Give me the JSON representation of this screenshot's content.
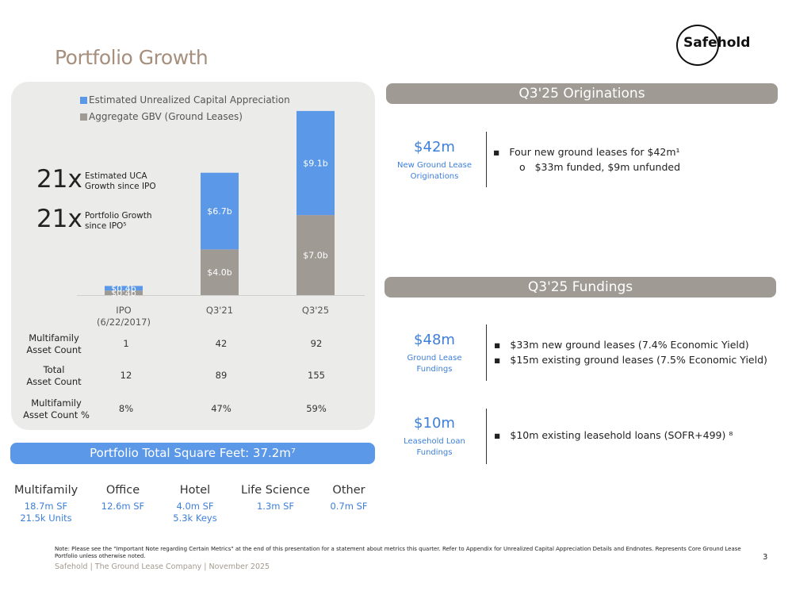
{
  "title": "Portfolio Growth",
  "logo": {
    "text": "Safehold"
  },
  "chart_data": {
    "type": "bar",
    "stacked": true,
    "categories": [
      "IPO\n(6/22/2017)",
      "Q3'21",
      "Q3'25"
    ],
    "series": [
      {
        "name": "Aggregate GBV (Ground Leases)",
        "color": "#a09a95",
        "values": [
          0.4,
          4.0,
          7.0
        ],
        "labels": [
          "$0.4b",
          "$4.0b",
          "$7.0b"
        ]
      },
      {
        "name": "Estimated Unrealized Capital Appreciation",
        "color": "#5b98e8",
        "values": [
          0.4,
          6.7,
          9.1
        ],
        "labels": [
          "$0.4b",
          "$6.7b",
          "$9.1b"
        ]
      }
    ],
    "ylim": [
      0,
      16.3
    ],
    "legend": [
      "Estimated Unrealized Capital Appreciation",
      "Aggregate GBV (Ground Leases)"
    ],
    "annotations": [
      {
        "value": "21x",
        "label_lines": [
          "Estimated UCA",
          "Growth since IPO"
        ]
      },
      {
        "value": "21x",
        "label_lines": [
          "Portfolio Growth",
          "since IPO⁵"
        ]
      }
    ]
  },
  "table": {
    "rows": [
      {
        "label_lines": [
          "Multifamily",
          "Asset Count"
        ],
        "values": [
          "1",
          "42",
          "92"
        ]
      },
      {
        "label_lines": [
          "Total",
          "Asset Count"
        ],
        "values": [
          "12",
          "89",
          "155"
        ]
      },
      {
        "label_lines": [
          "Multifamily",
          "Asset Count %"
        ],
        "values": [
          "8%",
          "47%",
          "59%"
        ]
      }
    ]
  },
  "sqft_bar": "Portfolio Total Square Feet: 37.2m⁷",
  "segments": [
    {
      "name": "Multifamily",
      "lines": [
        "18.7m SF",
        "21.5k Units"
      ]
    },
    {
      "name": "Office",
      "lines": [
        "12.6m SF"
      ]
    },
    {
      "name": "Hotel",
      "lines": [
        "4.0m SF",
        "5.3k Keys"
      ]
    },
    {
      "name": "Life Science",
      "lines": [
        "1.3m SF"
      ]
    },
    {
      "name": "Other",
      "lines": [
        "0.7m SF"
      ]
    }
  ],
  "originations": {
    "header": "Q3'25 Originations",
    "kpi": {
      "value": "$42m",
      "label": "New Ground Lease Originations"
    },
    "bullets": [
      "Four new ground leases for $42m¹"
    ],
    "sub_bullets": [
      "$33m funded, $9m unfunded"
    ]
  },
  "fundings": {
    "header": "Q3'25 Fundings",
    "kpi1": {
      "value": "$48m",
      "label": "Ground Lease Fundings"
    },
    "bullets1": [
      "$33m new ground leases (7.4% Economic Yield)",
      "$15m existing ground leases (7.5% Economic Yield)"
    ],
    "kpi2": {
      "value": "$10m",
      "label": "Leasehold Loan Fundings"
    },
    "bullets2": [
      "$10m existing leasehold loans (SOFR+499) ⁸"
    ]
  },
  "note": "Note: Please see the \"Important Note regarding Certain Metrics\" at the end of this presentation for a statement about metrics this quarter. Refer to Appendix for Unrealized Capital Appreciation Details and Endnotes. Represents Core Ground Lease Portfolio unless otherwise noted.",
  "footer": "Safehold | The Ground Lease Company | November 2025",
  "page_number": "3"
}
